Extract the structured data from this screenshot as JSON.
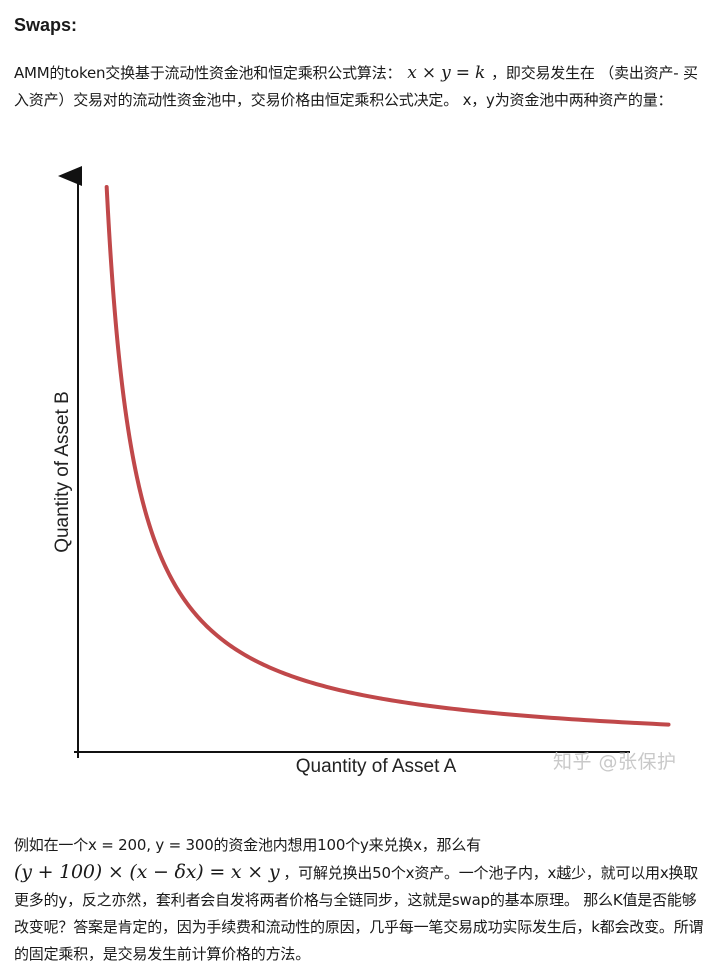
{
  "heading": "Swaps:",
  "intro": {
    "text_before": "AMM的token交换基于流动性资金池和恒定乘积公式算法：",
    "formula": "x × y = k",
    "text_after": "，即交易发生在 （卖出资产- 买入资产）交易对的流动性资金池中，交易价格由恒定乘积公式决定。 x，y为资金池中两种资产的量："
  },
  "chart_data": {
    "type": "line",
    "title": "",
    "xlabel": "Quantity of Asset A",
    "ylabel": "Quantity of Asset B",
    "series": [
      {
        "color": "#c0484a",
        "x": [
          0.5,
          0.6,
          0.8,
          1,
          1.2,
          1.5,
          2,
          2.5,
          3,
          4,
          5,
          6,
          7,
          8,
          9,
          10.3
        ],
        "y": [
          10,
          8.33,
          6.25,
          5,
          4.17,
          3.33,
          2.5,
          2,
          1.67,
          1.25,
          1,
          0.83,
          0.71,
          0.63,
          0.56,
          0.49
        ]
      }
    ],
    "xlim": [
      0,
      10.5
    ],
    "ylim": [
      0,
      10.3
    ],
    "grid": false,
    "ticks_shown": false
  },
  "watermark": "知乎 @张保护",
  "example": {
    "text1": "例如在一个x = 200, y = 300的资金池内想用100个y来兑换x，那么有",
    "formula": "(y + 100) × (x − δx) = x × y",
    "text2": "，可解兑换出50个x资产。一个池子内，x越少，就可以用x换取更多的y，反之亦然，套利者会自发将两者价格与全链同步，这就是swap的基本原理。  那么K值是否能够改变呢？答案是肯定的，因为手续费和流动性的原因，几乎每一笔交易成功实际发生后，k都会改变。所谓的固定乘积，是交易发生前计算价格的方法。"
  }
}
